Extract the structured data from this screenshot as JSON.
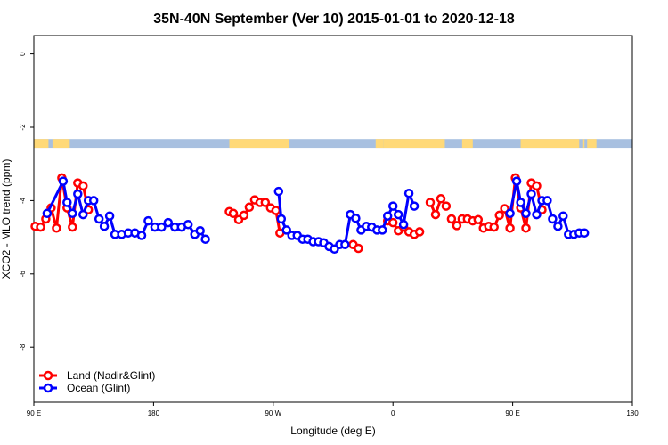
{
  "chart_data": {
    "type": "line",
    "title": "35N-40N September (Ver 10)   2015-01-01 to 2020-12-18",
    "xlabel": "Longitude (deg E)",
    "ylabel": "XCO2 - MLO trend (ppm)",
    "xlim": [
      90,
      540
    ],
    "ylim": [
      -9.5,
      0.5
    ],
    "x_ticks": [
      {
        "value": 90,
        "label": "90 E"
      },
      {
        "value": 180,
        "label": "180"
      },
      {
        "value": 270,
        "label": "90 W"
      },
      {
        "value": 360,
        "label": "0"
      },
      {
        "value": 450,
        "label": "90 E"
      },
      {
        "value": 540,
        "label": "180"
      }
    ],
    "y_ticks": [
      {
        "value": 0,
        "label": "0"
      },
      {
        "value": -2,
        "label": "-2"
      },
      {
        "value": -4,
        "label": "-4"
      },
      {
        "value": -6,
        "label": "-6"
      },
      {
        "value": -8,
        "label": "-8"
      }
    ],
    "grid": false,
    "legend_position": "bottom-left",
    "land_ocean_strip": {
      "y_top": -2.32,
      "y_bottom": -2.56,
      "ocean_color": "#a8c0e0",
      "land_color": "#ffd978",
      "land_ranges": [
        [
          90,
          101
        ],
        [
          104,
          117
        ],
        [
          237,
          282
        ],
        [
          347,
          353
        ],
        [
          353,
          399
        ],
        [
          412,
          420
        ],
        [
          456,
          500
        ],
        [
          503,
          504
        ],
        [
          506,
          513
        ]
      ]
    },
    "series": [
      {
        "name": "Land (Nadir&Glint)",
        "color": "#ff0000",
        "segments": [
          [
            [
              91,
              -4.7
            ],
            [
              95,
              -4.72
            ],
            [
              99,
              -4.5
            ],
            [
              103,
              -4.2
            ],
            [
              107,
              -4.75
            ],
            [
              111,
              -3.38
            ],
            [
              115,
              -4.2
            ],
            [
              119,
              -4.72
            ],
            [
              123,
              -3.52
            ],
            [
              127,
              -3.6
            ],
            [
              131,
              -4.25
            ]
          ],
          [
            [
              237,
              -4.3
            ],
            [
              240,
              -4.35
            ],
            [
              244,
              -4.52
            ],
            [
              248,
              -4.4
            ],
            [
              252,
              -4.18
            ],
            [
              256,
              -3.98
            ],
            [
              260,
              -4.05
            ],
            [
              264,
              -4.05
            ],
            [
              268,
              -4.2
            ],
            [
              272,
              -4.27
            ],
            [
              275,
              -4.88
            ]
          ],
          [
            [
              330,
              -5.2
            ],
            [
              334,
              -5.3
            ]
          ],
          [
            [
              356,
              -4.55
            ],
            [
              360,
              -4.6
            ],
            [
              364,
              -4.82
            ],
            [
              368,
              -4.72
            ],
            [
              372,
              -4.85
            ],
            [
              376,
              -4.92
            ],
            [
              380,
              -4.85
            ]
          ],
          [
            [
              388,
              -4.05
            ],
            [
              392,
              -4.38
            ],
            [
              396,
              -3.95
            ],
            [
              400,
              -4.15
            ]
          ],
          [
            [
              404,
              -4.5
            ],
            [
              408,
              -4.68
            ],
            [
              412,
              -4.5
            ],
            [
              416,
              -4.5
            ],
            [
              420,
              -4.55
            ],
            [
              424,
              -4.52
            ],
            [
              428,
              -4.75
            ],
            [
              432,
              -4.7
            ],
            [
              436,
              -4.72
            ],
            [
              440,
              -4.4
            ],
            [
              444,
              -4.22
            ],
            [
              448,
              -4.75
            ],
            [
              452,
              -3.38
            ],
            [
              456,
              -4.2
            ],
            [
              460,
              -4.75
            ],
            [
              464,
              -3.52
            ],
            [
              468,
              -3.6
            ],
            [
              472,
              -4.25
            ]
          ]
        ]
      },
      {
        "name": "Ocean (Glint)",
        "color": "#0000ff",
        "segments": [
          [
            [
              100,
              -4.35
            ],
            [
              112,
              -3.47
            ],
            [
              115,
              -4.05
            ],
            [
              119,
              -4.35
            ],
            [
              123,
              -3.82
            ],
            [
              127,
              -4.38
            ],
            [
              131,
              -4.0
            ],
            [
              135,
              -4.0
            ],
            [
              139,
              -4.5
            ],
            [
              143,
              -4.7
            ],
            [
              147,
              -4.42
            ],
            [
              151,
              -4.92
            ],
            [
              156,
              -4.92
            ],
            [
              161,
              -4.88
            ],
            [
              166,
              -4.88
            ],
            [
              171,
              -4.95
            ],
            [
              176,
              -4.55
            ],
            [
              181,
              -4.72
            ],
            [
              186,
              -4.72
            ],
            [
              191,
              -4.6
            ],
            [
              196,
              -4.72
            ],
            [
              201,
              -4.72
            ],
            [
              206,
              -4.65
            ],
            [
              211,
              -4.92
            ],
            [
              215,
              -4.82
            ],
            [
              219,
              -5.05
            ]
          ],
          [
            [
              274,
              -3.75
            ],
            [
              276,
              -4.5
            ],
            [
              280,
              -4.8
            ],
            [
              284,
              -4.95
            ],
            [
              288,
              -4.95
            ],
            [
              292,
              -5.05
            ],
            [
              296,
              -5.05
            ],
            [
              300,
              -5.12
            ],
            [
              304,
              -5.12
            ],
            [
              308,
              -5.15
            ],
            [
              312,
              -5.25
            ],
            [
              316,
              -5.32
            ],
            [
              320,
              -5.2
            ],
            [
              324,
              -5.2
            ],
            [
              328,
              -4.38
            ],
            [
              332,
              -4.48
            ],
            [
              336,
              -4.8
            ],
            [
              340,
              -4.7
            ],
            [
              344,
              -4.72
            ],
            [
              348,
              -4.8
            ],
            [
              352,
              -4.8
            ],
            [
              356,
              -4.42
            ],
            [
              360,
              -4.15
            ],
            [
              364,
              -4.38
            ],
            [
              368,
              -4.65
            ],
            [
              372,
              -3.8
            ],
            [
              376,
              -4.15
            ]
          ],
          [
            [
              448,
              -4.35
            ],
            [
              453,
              -3.47
            ],
            [
              456,
              -4.05
            ],
            [
              460,
              -4.35
            ],
            [
              464,
              -3.82
            ],
            [
              468,
              -4.38
            ],
            [
              472,
              -4.0
            ],
            [
              476,
              -4.0
            ],
            [
              480,
              -4.5
            ],
            [
              484,
              -4.7
            ],
            [
              488,
              -4.42
            ],
            [
              492,
              -4.92
            ],
            [
              496,
              -4.92
            ],
            [
              500,
              -4.88
            ],
            [
              504,
              -4.88
            ]
          ]
        ]
      }
    ]
  }
}
